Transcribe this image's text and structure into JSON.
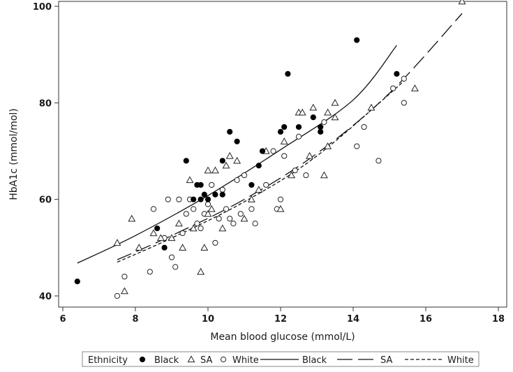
{
  "chart_data": {
    "type": "scatter",
    "title": "",
    "xlabel": "Mean blood glucose (mmol/L)",
    "ylabel": "HbA1c (mmol/mol)",
    "xlim": [
      6,
      18
    ],
    "ylim": [
      40,
      100
    ],
    "xticks": [
      6,
      8,
      10,
      12,
      14,
      16,
      18
    ],
    "yticks": [
      40,
      60,
      80,
      100
    ],
    "grid": false,
    "legend": {
      "position": "bottom",
      "title": "Ethnicity",
      "entries": [
        {
          "label": "Black",
          "type": "marker",
          "marker": "filled-circle"
        },
        {
          "label": "SA",
          "type": "marker",
          "marker": "triangle"
        },
        {
          "label": "White",
          "type": "marker",
          "marker": "open-circle"
        },
        {
          "label": "Black",
          "type": "line",
          "dash": "solid"
        },
        {
          "label": "SA",
          "type": "line",
          "dash": "long-dash"
        },
        {
          "label": "White",
          "type": "line",
          "dash": "short-dash"
        }
      ]
    },
    "series": [
      {
        "name": "Black",
        "marker": "filled-circle",
        "points": [
          [
            6.4,
            43
          ],
          [
            8.6,
            54
          ],
          [
            8.8,
            50
          ],
          [
            9.4,
            68
          ],
          [
            9.6,
            60
          ],
          [
            9.7,
            63
          ],
          [
            9.8,
            63
          ],
          [
            9.8,
            60
          ],
          [
            9.9,
            61
          ],
          [
            10,
            60
          ],
          [
            10.2,
            61
          ],
          [
            10.4,
            61
          ],
          [
            10.4,
            68
          ],
          [
            10.6,
            74
          ],
          [
            10.8,
            72
          ],
          [
            11.2,
            63
          ],
          [
            11.4,
            67
          ],
          [
            11.5,
            70
          ],
          [
            12,
            74
          ],
          [
            12.1,
            75
          ],
          [
            12.2,
            86
          ],
          [
            12.5,
            75
          ],
          [
            12.9,
            77
          ],
          [
            13.1,
            74
          ],
          [
            13.1,
            75
          ],
          [
            14.1,
            93
          ],
          [
            15.2,
            86
          ]
        ]
      },
      {
        "name": "SA",
        "marker": "triangle",
        "points": [
          [
            7.5,
            51
          ],
          [
            7.7,
            41
          ],
          [
            7.9,
            56
          ],
          [
            8.1,
            50
          ],
          [
            8.5,
            53
          ],
          [
            8.7,
            52
          ],
          [
            9,
            52
          ],
          [
            9.2,
            55
          ],
          [
            9.3,
            50
          ],
          [
            9.5,
            64
          ],
          [
            9.6,
            54
          ],
          [
            9.8,
            45
          ],
          [
            9.9,
            50
          ],
          [
            10,
            66
          ],
          [
            10,
            57
          ],
          [
            10.1,
            58
          ],
          [
            10.2,
            66
          ],
          [
            10.4,
            54
          ],
          [
            10.5,
            67
          ],
          [
            10.6,
            69
          ],
          [
            10.8,
            68
          ],
          [
            11,
            56
          ],
          [
            11.2,
            60
          ],
          [
            11.4,
            62
          ],
          [
            11.6,
            70
          ],
          [
            12,
            58
          ],
          [
            12.1,
            72
          ],
          [
            12.3,
            65
          ],
          [
            12.5,
            78
          ],
          [
            12.6,
            78
          ],
          [
            12.8,
            69
          ],
          [
            12.9,
            79
          ],
          [
            13.2,
            65
          ],
          [
            13.3,
            71
          ],
          [
            13.3,
            78
          ],
          [
            13.5,
            77
          ],
          [
            13.5,
            80
          ],
          [
            14.5,
            79
          ],
          [
            15.7,
            83
          ],
          [
            17,
            101
          ]
        ]
      },
      {
        "name": "White",
        "marker": "open-circle",
        "points": [
          [
            7.5,
            40
          ],
          [
            7.7,
            44
          ],
          [
            8.4,
            45
          ],
          [
            8.5,
            58
          ],
          [
            8.8,
            52
          ],
          [
            8.9,
            60
          ],
          [
            9,
            48
          ],
          [
            9.1,
            46
          ],
          [
            9.2,
            60
          ],
          [
            9.3,
            53
          ],
          [
            9.4,
            57
          ],
          [
            9.5,
            60
          ],
          [
            9.6,
            58
          ],
          [
            9.7,
            55
          ],
          [
            9.8,
            54
          ],
          [
            9.9,
            57
          ],
          [
            10,
            59
          ],
          [
            10.1,
            63
          ],
          [
            10.2,
            51
          ],
          [
            10.3,
            56
          ],
          [
            10.4,
            62
          ],
          [
            10.5,
            58
          ],
          [
            10.6,
            56
          ],
          [
            10.7,
            55
          ],
          [
            10.8,
            64
          ],
          [
            10.9,
            57
          ],
          [
            11,
            65
          ],
          [
            11.2,
            58
          ],
          [
            11.3,
            55
          ],
          [
            11.6,
            63
          ],
          [
            11.8,
            70
          ],
          [
            11.9,
            58
          ],
          [
            12,
            60
          ],
          [
            12.1,
            69
          ],
          [
            12.4,
            66
          ],
          [
            12.5,
            73
          ],
          [
            12.7,
            65
          ],
          [
            13.2,
            76
          ],
          [
            14.1,
            71
          ],
          [
            14.3,
            75
          ],
          [
            14.7,
            68
          ],
          [
            15.1,
            83
          ],
          [
            15.4,
            80
          ],
          [
            15.4,
            85
          ]
        ]
      }
    ],
    "fit_lines": [
      {
        "name": "Black",
        "dash": "solid",
        "points": [
          [
            6.4,
            46.8
          ],
          [
            8,
            52.5
          ],
          [
            10,
            60.8
          ],
          [
            12,
            70.3
          ],
          [
            14,
            80.6
          ],
          [
            15.2,
            91.9
          ]
        ]
      },
      {
        "name": "SA",
        "dash": "long-dash",
        "points": [
          [
            7.5,
            47.5
          ],
          [
            9,
            52.5
          ],
          [
            11,
            60
          ],
          [
            13,
            69.5
          ],
          [
            15,
            82
          ],
          [
            17,
            98.5
          ]
        ]
      },
      {
        "name": "White",
        "dash": "short-dash",
        "points": [
          [
            7.5,
            47
          ],
          [
            9,
            52
          ],
          [
            11,
            59.5
          ],
          [
            13,
            69
          ],
          [
            15.4,
            84.5
          ]
        ]
      }
    ]
  }
}
